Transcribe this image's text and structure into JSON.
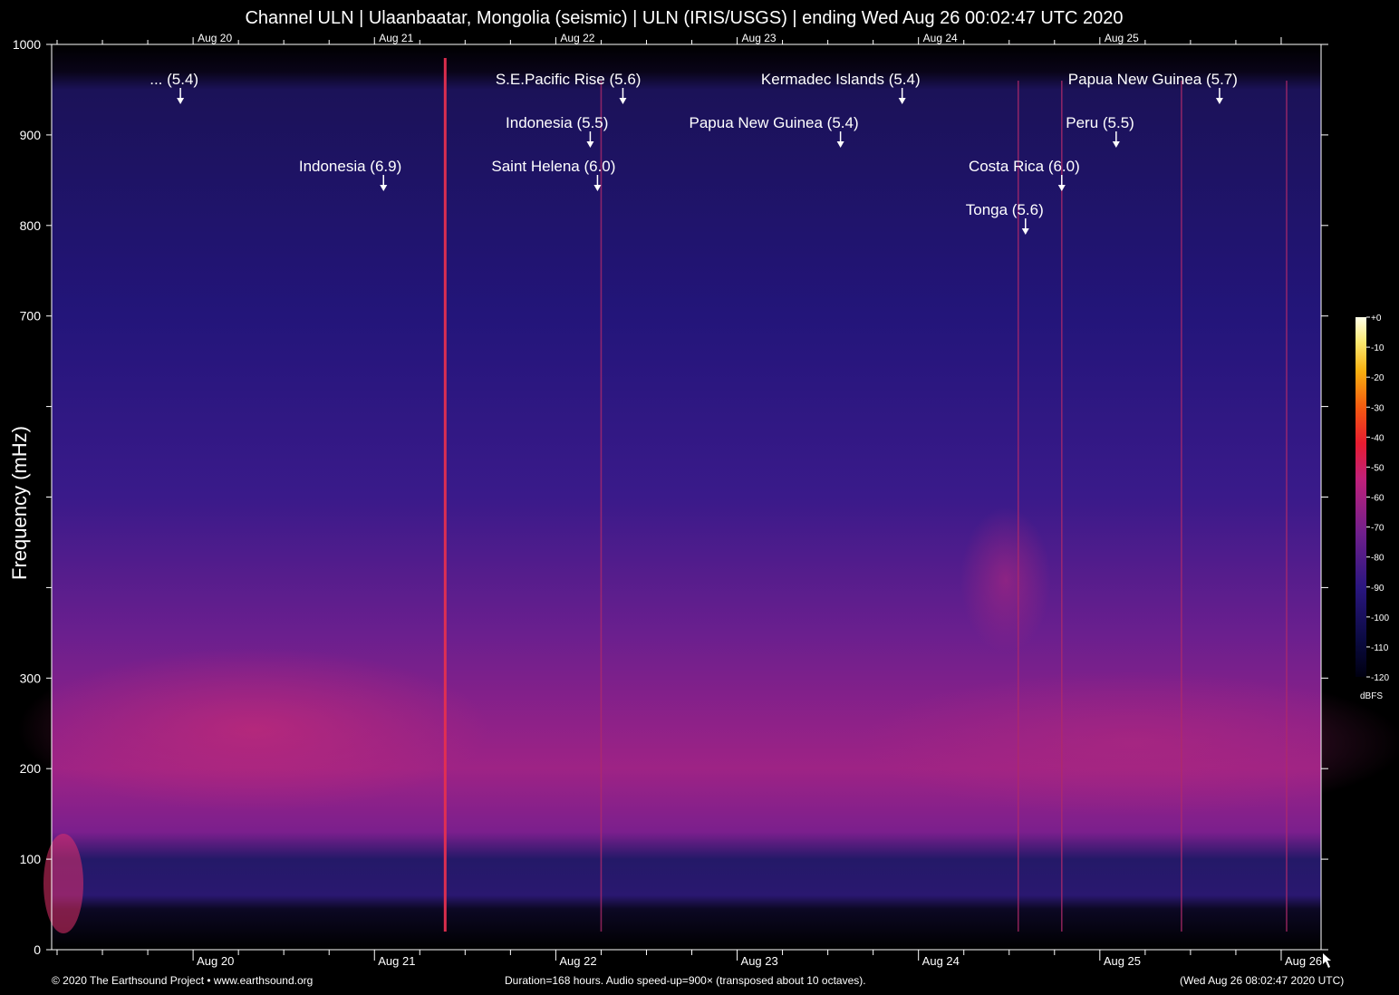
{
  "title": "Channel ULN | Ulaanbaatar, Mongolia (seismic) | ULN (IRIS/USGS) | ending Wed Aug 26 00:02:47 UTC 2020",
  "footer": {
    "copyright": "© 2020 The Earthsound Project • www.earthsound.org",
    "duration": "Duration=168 hours. Audio speed-up=900× (transposed about 10 octaves).",
    "timestamp": "(Wed Aug 26 08:02:47 2020 UTC)"
  },
  "chart_data": {
    "type": "heatmap",
    "title": "Channel ULN | Ulaanbaatar, Mongolia (seismic) | ULN (IRIS/USGS) | ending Wed Aug 26 00:02:47 UTC 2020",
    "ylabel": "Frequency (mHz)",
    "xlabel": "",
    "xlim_days": [
      19.22,
      26.22
    ],
    "ylim": [
      0,
      1000
    ],
    "y_tick_labels": [
      "0",
      "100",
      "200",
      "300",
      "",
      "",
      "700",
      "800",
      "900",
      "1000"
    ],
    "y_tick_values": [
      0,
      100,
      200,
      300,
      400,
      500,
      700,
      800,
      900,
      1000
    ],
    "x_tick_labels_bottom": [
      "Aug 20",
      "Aug 21",
      "Aug 22",
      "Aug 23",
      "Aug 24",
      "Aug 25",
      "Aug 26"
    ],
    "x_tick_labels_top": [
      "Aug 20",
      "Aug 21",
      "Aug 22",
      "Aug 23",
      "Aug 24",
      "Aug 25"
    ],
    "x_tick_days": [
      20,
      21,
      22,
      23,
      24,
      25,
      26
    ],
    "colorbar": {
      "unit": "dBFS",
      "tick_labels": [
        "+0",
        "-10",
        "-20",
        "-30",
        "-40",
        "-50",
        "-60",
        "-70",
        "-80",
        "-90",
        "-100",
        "-110",
        "-120"
      ],
      "range": [
        -120,
        0
      ]
    },
    "events": [
      {
        "label": "... (5.4)",
        "day": 19.93
      },
      {
        "label": "Indonesia (6.9)",
        "day": 21.05
      },
      {
        "label": "Indonesia (5.5)",
        "day": 22.19
      },
      {
        "label": "S.E.Pacific Rise (5.6)",
        "day": 22.37
      },
      {
        "label": "Saint Helena (6.0)",
        "day": 22.23
      },
      {
        "label": "Papua New Guinea (5.4)",
        "day": 23.57
      },
      {
        "label": "Kermadec Islands (5.4)",
        "day": 23.91
      },
      {
        "label": "Costa Rica (6.0)",
        "day": 24.79
      },
      {
        "label": "Tonga (5.6)",
        "day": 24.59
      },
      {
        "label": "Peru (5.5)",
        "day": 25.09
      },
      {
        "label": "Papua New Guinea (5.7)",
        "day": 25.66
      }
    ],
    "vertical_lines_days": [
      21.39,
      22.25,
      24.55,
      24.79,
      25.45,
      26.03
    ]
  }
}
